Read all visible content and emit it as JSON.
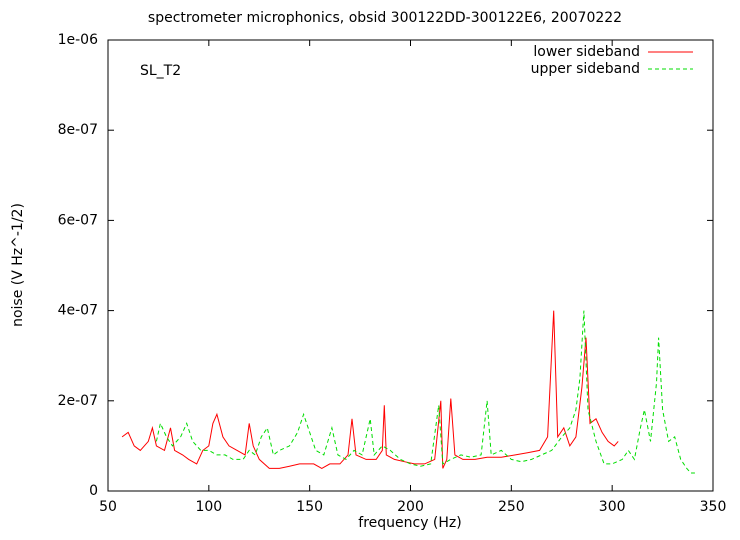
{
  "chart_data": {
    "type": "line",
    "title": "spectrometer microphonics, obsid 300122DD-300122E6, 20070222",
    "xlabel": "frequency (Hz)",
    "ylabel": "noise (V Hz^-1/2)",
    "annotation": "SL_T2",
    "legend": "top right",
    "xlim": [
      50,
      350
    ],
    "xticks": [
      50,
      100,
      150,
      200,
      250,
      300,
      350
    ],
    "ylim": [
      0,
      1e-06
    ],
    "yticks": [
      0,
      {
        "value": 2e-07,
        "label": "2e-07"
      },
      {
        "value": 4e-07,
        "label": "4e-07"
      },
      {
        "value": 6e-07,
        "label": "6e-07"
      },
      {
        "value": 8e-07,
        "label": "8e-07"
      },
      {
        "value": 1e-06,
        "label": "1e-06"
      }
    ],
    "series": [
      {
        "name": "lower sideband",
        "color": "#ff0000",
        "style": "solid",
        "x": [
          57,
          60,
          63,
          66,
          70,
          72,
          74,
          78,
          81,
          83,
          87,
          90,
          94,
          97,
          100,
          102,
          104,
          107,
          110,
          114,
          118,
          120,
          122,
          125,
          130,
          135,
          140,
          145,
          148,
          152,
          156,
          160,
          165,
          169,
          171,
          173,
          178,
          183,
          186,
          187,
          188,
          192,
          197,
          202,
          207,
          212,
          215,
          216,
          218,
          220,
          222,
          226,
          232,
          238,
          245,
          252,
          258,
          264,
          268,
          271,
          273,
          276,
          279,
          282,
          285,
          287,
          289,
          292,
          295,
          298,
          301,
          303
        ],
        "values": [
          1.2e-07,
          1.3e-07,
          1e-07,
          9e-08,
          1.1e-07,
          1.4e-07,
          1e-07,
          9e-08,
          1.4e-07,
          9e-08,
          8e-08,
          7e-08,
          6e-08,
          9e-08,
          1e-07,
          1.5e-07,
          1.7e-07,
          1.2e-07,
          1e-07,
          9e-08,
          8e-08,
          1.5e-07,
          1e-07,
          7e-08,
          5e-08,
          5e-08,
          5.5e-08,
          6e-08,
          6e-08,
          6e-08,
          5e-08,
          6e-08,
          6e-08,
          8e-08,
          1.6e-07,
          8e-08,
          7e-08,
          7e-08,
          9e-08,
          1.9e-07,
          8e-08,
          7e-08,
          6.5e-08,
          6e-08,
          6e-08,
          7e-08,
          2e-07,
          5e-08,
          7e-08,
          2.05e-07,
          8e-08,
          7e-08,
          7e-08,
          7.5e-08,
          7.5e-08,
          8e-08,
          8.5e-08,
          9e-08,
          1.2e-07,
          4e-07,
          1.2e-07,
          1.4e-07,
          1e-07,
          1.2e-07,
          2.3e-07,
          3.4e-07,
          1.5e-07,
          1.6e-07,
          1.3e-07,
          1.1e-07,
          1e-07,
          1.1e-07
        ]
      },
      {
        "name": "upper sideband",
        "color": "#00dd00",
        "style": "dashed",
        "x": [
          74,
          76,
          79,
          82,
          86,
          89,
          92,
          96,
          100,
          104,
          108,
          112,
          117,
          120,
          123,
          126,
          129,
          132,
          135,
          140,
          144,
          147,
          150,
          153,
          157,
          161,
          164,
          168,
          172,
          176,
          180,
          182,
          186,
          190,
          195,
          200,
          205,
          210,
          214,
          216,
          220,
          225,
          230,
          235,
          238,
          240,
          245,
          250,
          255,
          260,
          265,
          270,
          275,
          279,
          282,
          284,
          286,
          288,
          292,
          296,
          300,
          305,
          308,
          311,
          314,
          316,
          319,
          322,
          323,
          325,
          328,
          331,
          334,
          337,
          339,
          341
        ],
        "values": [
          1.1e-07,
          1.5e-07,
          1.2e-07,
          1e-07,
          1.2e-07,
          1.5e-07,
          1.1e-07,
          9e-08,
          9e-08,
          8e-08,
          8e-08,
          7e-08,
          7e-08,
          9e-08,
          8e-08,
          1.2e-07,
          1.4e-07,
          8e-08,
          9e-08,
          1e-07,
          1.3e-07,
          1.7e-07,
          1.3e-07,
          9e-08,
          8e-08,
          1.4e-07,
          8e-08,
          7e-08,
          9e-08,
          8e-08,
          1.6e-07,
          8e-08,
          1e-07,
          9e-08,
          7e-08,
          6e-08,
          5.5e-08,
          6e-08,
          1.9e-07,
          6e-08,
          7e-08,
          8e-08,
          7.5e-08,
          8e-08,
          2e-07,
          8e-08,
          9e-08,
          7e-08,
          6.5e-08,
          7e-08,
          8e-08,
          9e-08,
          1.2e-07,
          1.4e-07,
          1.8e-07,
          2.5e-07,
          4e-07,
          1.8e-07,
          1.1e-07,
          6e-08,
          6e-08,
          7e-08,
          9e-08,
          7e-08,
          1.4e-07,
          1.8e-07,
          1.1e-07,
          2.4e-07,
          3.4e-07,
          1.8e-07,
          1.1e-07,
          1.2e-07,
          7e-08,
          5e-08,
          4e-08,
          4e-08
        ]
      }
    ]
  }
}
